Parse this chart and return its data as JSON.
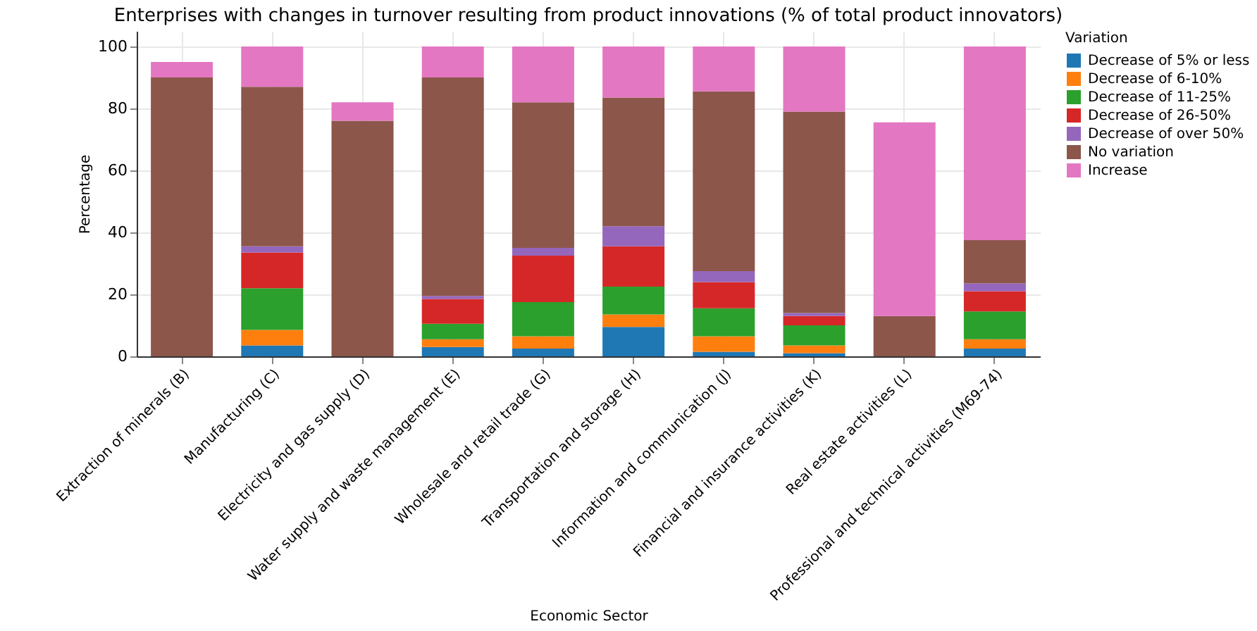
{
  "chart_data": {
    "type": "bar",
    "stacked": true,
    "title": "Enterprises with changes in turnover resulting from product innovations (% of total product innovators)",
    "xlabel": "Economic Sector",
    "ylabel": "Percentage",
    "legend_title": "Variation",
    "legend": "right",
    "grid": true,
    "categories": [
      "Extraction of minerals (B)",
      "Manufacturing (C)",
      "Electricity and gas supply (D)",
      "Water supply and waste management (E)",
      "Wholesale and retail trade (G)",
      "Transportation and storage (H)",
      "Information and communication (J)",
      "Financial and insurance activities (K)",
      "Real estate activities (L)",
      "Professional and technical activities (M69-74)"
    ],
    "ylim": [
      0,
      105
    ],
    "yticks": [
      0,
      20,
      40,
      60,
      80,
      100
    ],
    "series": [
      {
        "name": "Decrease of 5% or less",
        "color": "#1f77b4",
        "values": [
          null,
          3.5,
          null,
          3,
          2.5,
          9.5,
          1.5,
          1,
          null,
          2.5
        ]
      },
      {
        "name": "Decrease of 6-10%",
        "color": "#ff7f0e",
        "values": [
          null,
          5,
          null,
          2.5,
          4,
          4,
          5,
          2.5,
          null,
          3
        ]
      },
      {
        "name": "Decrease of 11-25%",
        "color": "#2ca02c",
        "values": [
          null,
          13.5,
          null,
          5,
          11,
          9,
          9,
          6.5,
          null,
          9
        ]
      },
      {
        "name": "Decrease of 26-50%",
        "color": "#d62728",
        "values": [
          null,
          11.5,
          null,
          8,
          15,
          13,
          8.5,
          3,
          null,
          6.5
        ]
      },
      {
        "name": "Decrease of over 50%",
        "color": "#9467bd",
        "values": [
          null,
          2,
          null,
          1,
          2.5,
          6.5,
          3.5,
          1,
          null,
          2.5
        ]
      },
      {
        "name": "No variation",
        "color": "#8c564b",
        "values": [
          90,
          51.5,
          76,
          70.5,
          47,
          41.5,
          58,
          65,
          13,
          14
        ]
      },
      {
        "name": "Increase",
        "color": "#e377c2",
        "values": [
          5,
          13,
          6,
          10,
          18,
          16.5,
          14.5,
          21,
          62.5,
          62.5
        ]
      }
    ]
  }
}
